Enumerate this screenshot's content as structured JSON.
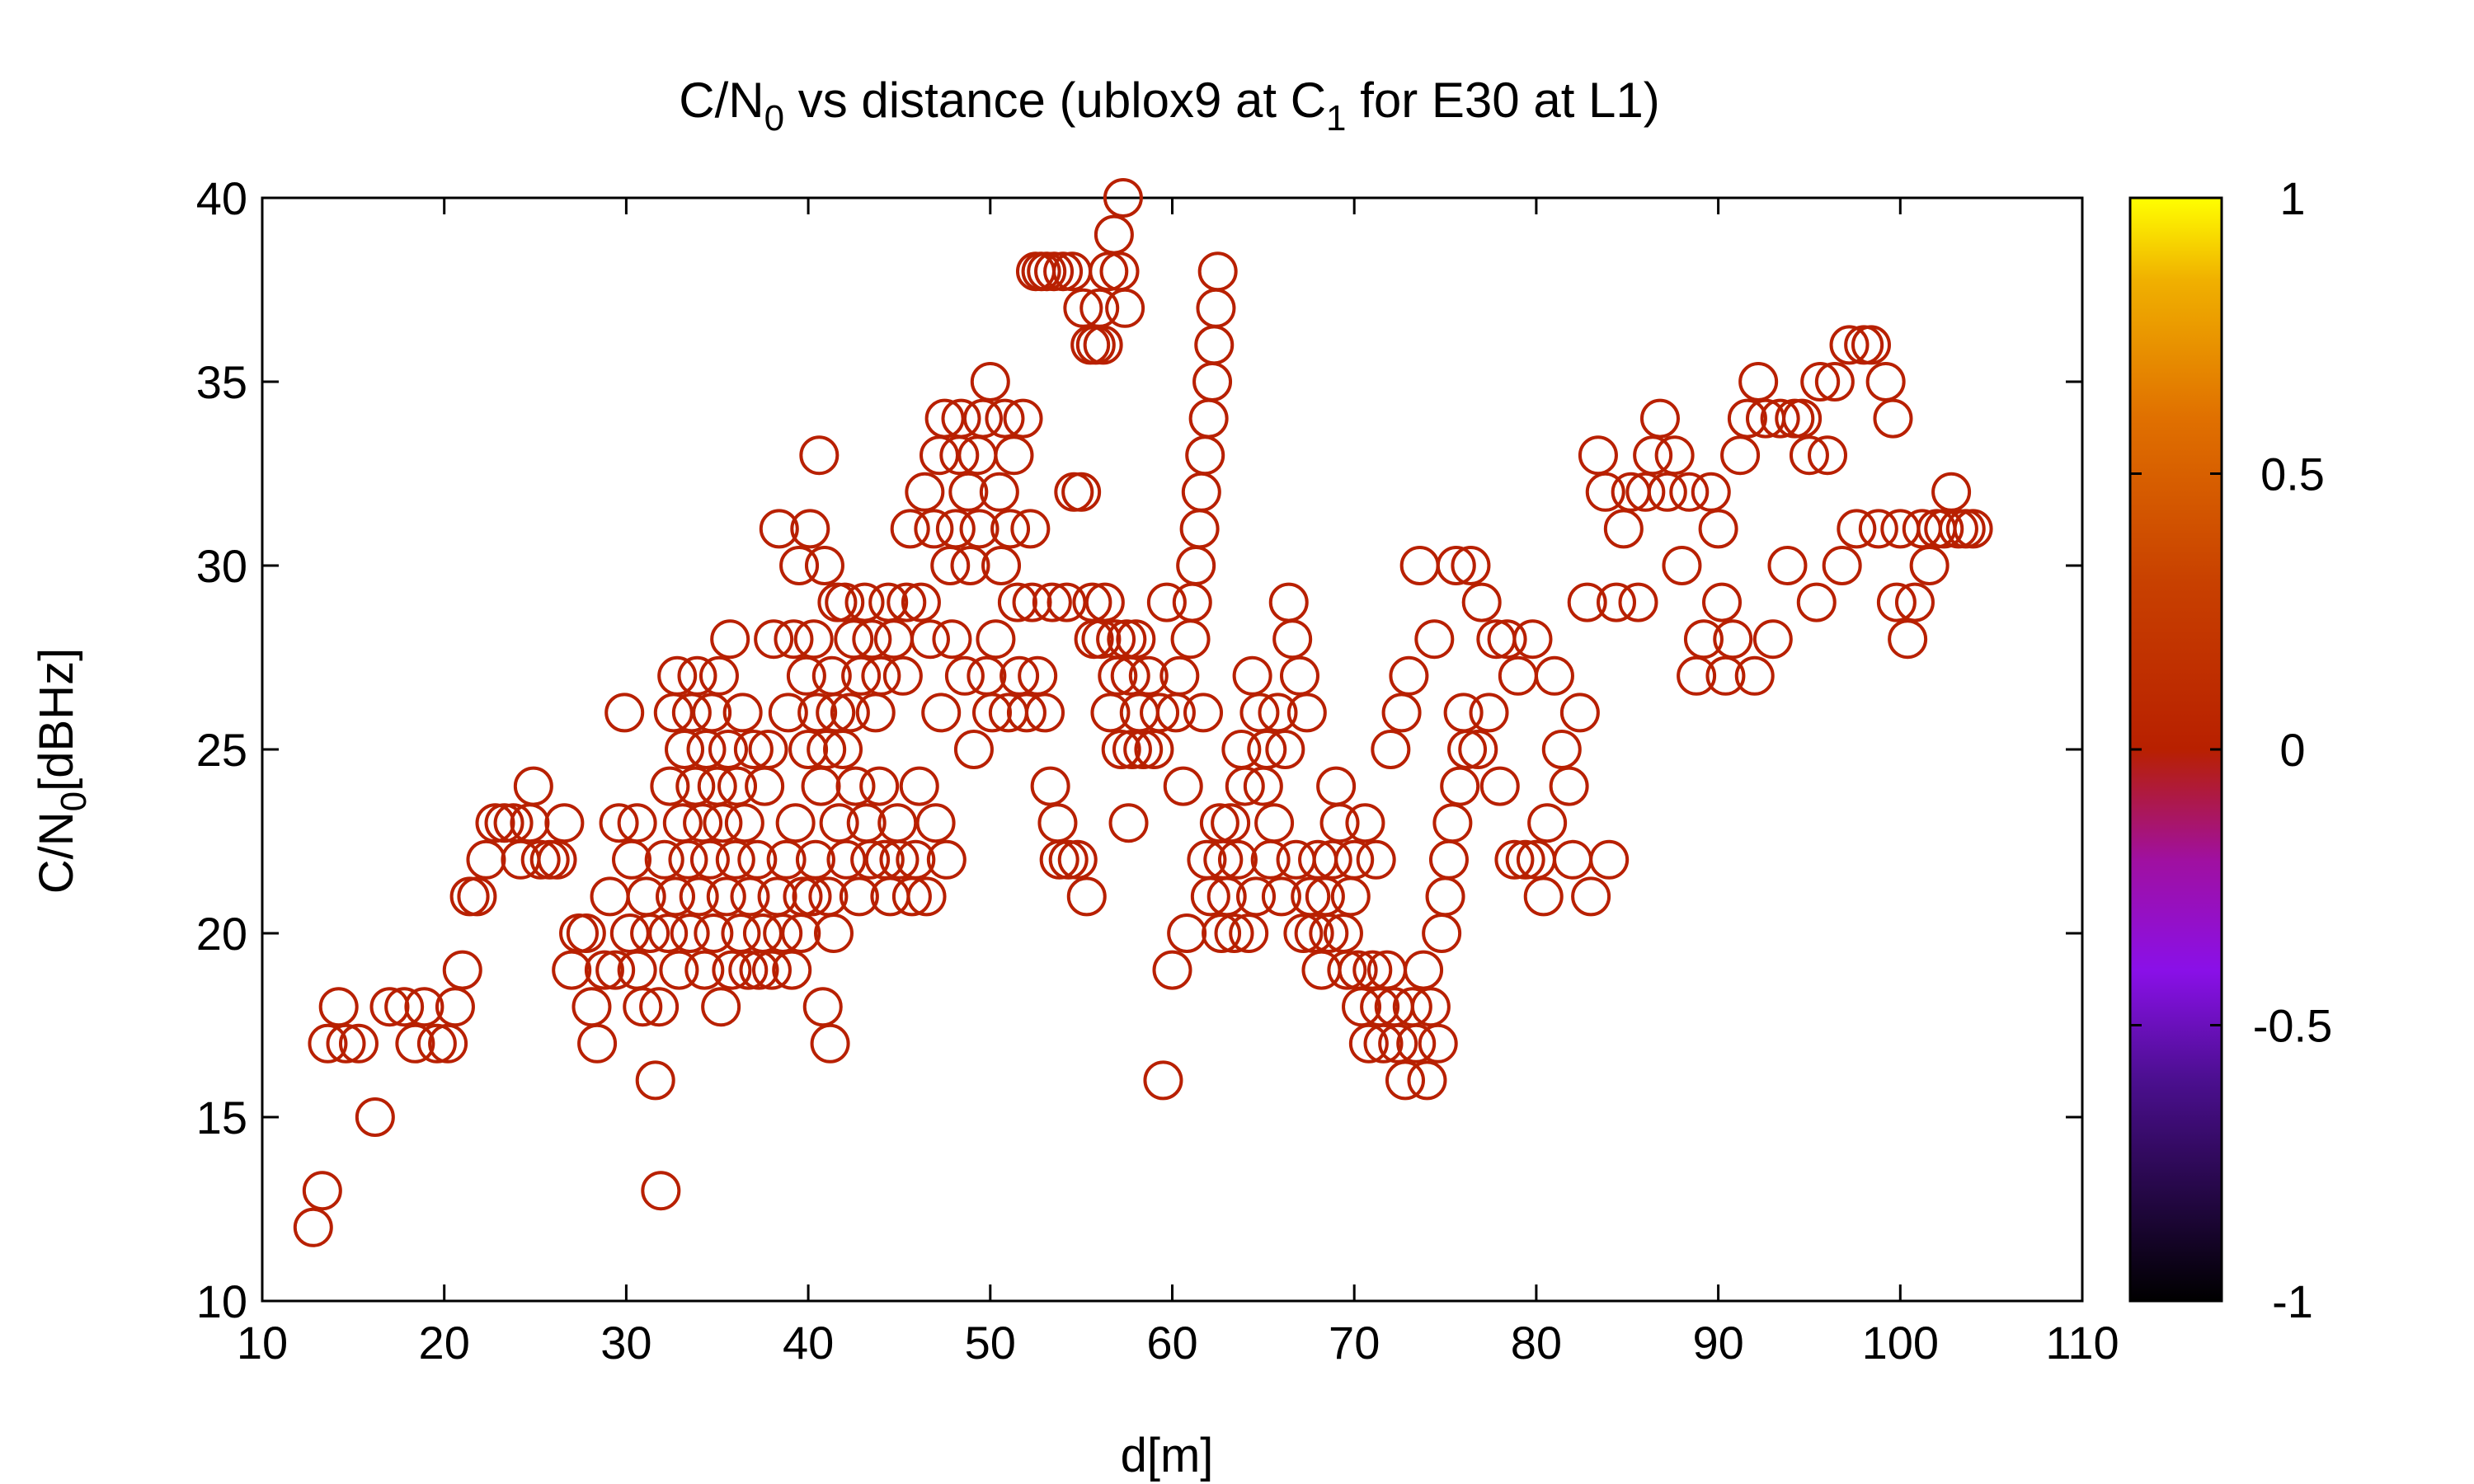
{
  "chart_data": {
    "type": "scatter",
    "title": {
      "part1": "C/N",
      "sub1": "0",
      "part2": " vs distance (ublox9 at C",
      "sub2": "1",
      "part3": " for E30 at L1)"
    },
    "xlabel": "d[m]",
    "ylabel": {
      "main": "C/N",
      "sub": "0",
      "unit": "[dBHz]"
    },
    "xlim": [
      10,
      110
    ],
    "ylim": [
      10,
      40
    ],
    "xticks": [
      10,
      20,
      30,
      40,
      50,
      60,
      70,
      80,
      90,
      100,
      110
    ],
    "yticks": [
      10,
      15,
      20,
      25,
      30,
      35,
      40
    ],
    "grid": false,
    "legend": "none",
    "marker": "open-circle",
    "point_color": "#b82000",
    "colorbar": {
      "range": [
        -1,
        1
      ],
      "ticks": [
        {
          "value": 1,
          "label": "1"
        },
        {
          "value": 0.5,
          "label": "0.5"
        },
        {
          "value": 0,
          "label": "0"
        },
        {
          "value": -0.5,
          "label": "-0.5"
        },
        {
          "value": -1,
          "label": "-1"
        }
      ],
      "stops": [
        {
          "value": -1,
          "color": "#000000"
        },
        {
          "value": -0.6,
          "color": "#4b0f8f"
        },
        {
          "value": -0.4,
          "color": "#8a10e8"
        },
        {
          "value": -0.2,
          "color": "#a010a0"
        },
        {
          "value": 0,
          "color": "#b82000"
        },
        {
          "value": 0.3,
          "color": "#c84000"
        },
        {
          "value": 0.6,
          "color": "#e07000"
        },
        {
          "value": 0.85,
          "color": "#f0b000"
        },
        {
          "value": 1,
          "color": "#ffff00"
        }
      ]
    },
    "points": [
      [
        12.8,
        12
      ],
      [
        13.3,
        13
      ],
      [
        13.6,
        17
      ],
      [
        14.2,
        18
      ],
      [
        14.6,
        17
      ],
      [
        15.3,
        17
      ],
      [
        16.2,
        15
      ],
      [
        17.0,
        18
      ],
      [
        17.8,
        18
      ],
      [
        18.4,
        17
      ],
      [
        18.9,
        18
      ],
      [
        19.6,
        17
      ],
      [
        20.2,
        17
      ],
      [
        20.6,
        18
      ],
      [
        21.0,
        19
      ],
      [
        21.4,
        21
      ],
      [
        21.8,
        21
      ],
      [
        22.3,
        22
      ],
      [
        22.8,
        23
      ],
      [
        23.3,
        23
      ],
      [
        23.8,
        23
      ],
      [
        24.2,
        22
      ],
      [
        24.7,
        23
      ],
      [
        24.9,
        24
      ],
      [
        25.3,
        22
      ],
      [
        25.8,
        22
      ],
      [
        26.2,
        22
      ],
      [
        26.6,
        23
      ],
      [
        27.0,
        19
      ],
      [
        27.4,
        20
      ],
      [
        27.8,
        20
      ],
      [
        28.1,
        18
      ],
      [
        28.4,
        17
      ],
      [
        28.8,
        19
      ],
      [
        29.1,
        21
      ],
      [
        29.4,
        19
      ],
      [
        29.6,
        23
      ],
      [
        29.9,
        26
      ],
      [
        30.2,
        20
      ],
      [
        30.3,
        22
      ],
      [
        30.6,
        19
      ],
      [
        30.6,
        23
      ],
      [
        30.9,
        18
      ],
      [
        31.1,
        21
      ],
      [
        31.3,
        20
      ],
      [
        31.6,
        16
      ],
      [
        31.8,
        18
      ],
      [
        31.9,
        13
      ],
      [
        32.1,
        22
      ],
      [
        32.3,
        20
      ],
      [
        32.4,
        24
      ],
      [
        32.6,
        26
      ],
      [
        32.7,
        21
      ],
      [
        32.8,
        27
      ],
      [
        32.9,
        19
      ],
      [
        33.1,
        23
      ],
      [
        33.2,
        25
      ],
      [
        33.4,
        22
      ],
      [
        33.5,
        20
      ],
      [
        33.6,
        26
      ],
      [
        33.8,
        24
      ],
      [
        33.9,
        27
      ],
      [
        34.0,
        21
      ],
      [
        34.2,
        23
      ],
      [
        34.3,
        19
      ],
      [
        34.4,
        25
      ],
      [
        34.6,
        22
      ],
      [
        34.7,
        26
      ],
      [
        34.8,
        20
      ],
      [
        35.0,
        24
      ],
      [
        35.1,
        27
      ],
      [
        35.2,
        18
      ],
      [
        35.3,
        23
      ],
      [
        35.5,
        21
      ],
      [
        35.6,
        25
      ],
      [
        35.7,
        28
      ],
      [
        35.8,
        19
      ],
      [
        36.0,
        22
      ],
      [
        36.1,
        24
      ],
      [
        36.3,
        20
      ],
      [
        36.4,
        26
      ],
      [
        36.5,
        23
      ],
      [
        36.7,
        19
      ],
      [
        36.8,
        21
      ],
      [
        37.0,
        25
      ],
      [
        37.2,
        22
      ],
      [
        37.3,
        19
      ],
      [
        37.5,
        20
      ],
      [
        37.6,
        24
      ],
      [
        37.8,
        25
      ],
      [
        38.0,
        19
      ],
      [
        38.1,
        28
      ],
      [
        38.3,
        21
      ],
      [
        38.4,
        31
      ],
      [
        38.6,
        20
      ],
      [
        38.8,
        22
      ],
      [
        38.9,
        26
      ],
      [
        39.1,
        19
      ],
      [
        39.2,
        28
      ],
      [
        39.3,
        23
      ],
      [
        39.5,
        30
      ],
      [
        39.6,
        20
      ],
      [
        39.7,
        21
      ],
      [
        39.9,
        27
      ],
      [
        40.0,
        25
      ],
      [
        40.1,
        31
      ],
      [
        40.2,
        21
      ],
      [
        40.3,
        28
      ],
      [
        40.4,
        22
      ],
      [
        40.5,
        26
      ],
      [
        40.6,
        33
      ],
      [
        40.7,
        24
      ],
      [
        40.8,
        18
      ],
      [
        40.9,
        30
      ],
      [
        41.0,
        25
      ],
      [
        41.1,
        21
      ],
      [
        41.2,
        17
      ],
      [
        41.3,
        27
      ],
      [
        41.4,
        20
      ],
      [
        41.5,
        26
      ],
      [
        41.6,
        29
      ],
      [
        41.7,
        23
      ],
      [
        41.9,
        25
      ],
      [
        42.0,
        29
      ],
      [
        42.1,
        22
      ],
      [
        42.3,
        26
      ],
      [
        42.5,
        28
      ],
      [
        42.6,
        24
      ],
      [
        42.8,
        21
      ],
      [
        42.9,
        27
      ],
      [
        43.1,
        29
      ],
      [
        43.2,
        23
      ],
      [
        43.4,
        22
      ],
      [
        43.5,
        28
      ],
      [
        43.7,
        26
      ],
      [
        43.9,
        24
      ],
      [
        44.0,
        27
      ],
      [
        44.2,
        22
      ],
      [
        44.4,
        29
      ],
      [
        44.5,
        21
      ],
      [
        44.7,
        28
      ],
      [
        44.9,
        23
      ],
      [
        45.0,
        22
      ],
      [
        45.2,
        27
      ],
      [
        45.4,
        29
      ],
      [
        45.6,
        31
      ],
      [
        45.7,
        21
      ],
      [
        45.9,
        22
      ],
      [
        46.1,
        24
      ],
      [
        46.2,
        29
      ],
      [
        46.4,
        32
      ],
      [
        46.5,
        21
      ],
      [
        46.7,
        28
      ],
      [
        46.9,
        31
      ],
      [
        47.0,
        23
      ],
      [
        47.2,
        33
      ],
      [
        47.3,
        26
      ],
      [
        47.5,
        34
      ],
      [
        47.6,
        22
      ],
      [
        47.8,
        30
      ],
      [
        47.9,
        28
      ],
      [
        48.1,
        31
      ],
      [
        48.3,
        33
      ],
      [
        48.4,
        34
      ],
      [
        48.6,
        27
      ],
      [
        48.8,
        32
      ],
      [
        48.9,
        30
      ],
      [
        49.1,
        25
      ],
      [
        49.3,
        33
      ],
      [
        49.4,
        31
      ],
      [
        49.6,
        34
      ],
      [
        49.8,
        27
      ],
      [
        50.0,
        35
      ],
      [
        50.1,
        26
      ],
      [
        50.3,
        28
      ],
      [
        50.5,
        32
      ],
      [
        50.6,
        30
      ],
      [
        50.8,
        34
      ],
      [
        51.0,
        26
      ],
      [
        51.1,
        31
      ],
      [
        51.3,
        33
      ],
      [
        51.5,
        29
      ],
      [
        51.6,
        27
      ],
      [
        51.8,
        34
      ],
      [
        52.0,
        26
      ],
      [
        52.2,
        31
      ],
      [
        52.3,
        29
      ],
      [
        52.5,
        38
      ],
      [
        52.6,
        27
      ],
      [
        52.8,
        38
      ],
      [
        53.0,
        26
      ],
      [
        53.1,
        38
      ],
      [
        53.3,
        24
      ],
      [
        53.4,
        29
      ],
      [
        53.5,
        38
      ],
      [
        53.7,
        23
      ],
      [
        53.8,
        22
      ],
      [
        54.0,
        38
      ],
      [
        54.2,
        29
      ],
      [
        54.3,
        22
      ],
      [
        54.5,
        38
      ],
      [
        54.6,
        32
      ],
      [
        54.8,
        22
      ],
      [
        55.0,
        32
      ],
      [
        55.1,
        37
      ],
      [
        55.3,
        21
      ],
      [
        55.5,
        36
      ],
      [
        55.6,
        29
      ],
      [
        55.7,
        28
      ],
      [
        55.8,
        36
      ],
      [
        56.0,
        37
      ],
      [
        56.1,
        28
      ],
      [
        56.2,
        36
      ],
      [
        56.3,
        29
      ],
      [
        56.5,
        38
      ],
      [
        56.6,
        26
      ],
      [
        56.8,
        39
      ],
      [
        56.9,
        28
      ],
      [
        57.0,
        27
      ],
      [
        57.1,
        38
      ],
      [
        57.2,
        25
      ],
      [
        57.3,
        40
      ],
      [
        57.4,
        37
      ],
      [
        57.5,
        28
      ],
      [
        57.6,
        23
      ],
      [
        57.7,
        27
      ],
      [
        57.8,
        25
      ],
      [
        58.0,
        28
      ],
      [
        58.2,
        26
      ],
      [
        58.4,
        25
      ],
      [
        58.7,
        27
      ],
      [
        59.0,
        25
      ],
      [
        59.3,
        26
      ],
      [
        59.5,
        16
      ],
      [
        59.7,
        29
      ],
      [
        60.0,
        19
      ],
      [
        60.2,
        26
      ],
      [
        60.4,
        27
      ],
      [
        60.6,
        24
      ],
      [
        60.8,
        20
      ],
      [
        61.0,
        28
      ],
      [
        61.1,
        29
      ],
      [
        61.3,
        30
      ],
      [
        61.5,
        31
      ],
      [
        61.6,
        32
      ],
      [
        61.7,
        26
      ],
      [
        61.8,
        33
      ],
      [
        61.9,
        22
      ],
      [
        62.0,
        34
      ],
      [
        62.1,
        21
      ],
      [
        62.2,
        35
      ],
      [
        62.3,
        36
      ],
      [
        62.4,
        37
      ],
      [
        62.5,
        38
      ],
      [
        62.6,
        23
      ],
      [
        62.7,
        20
      ],
      [
        62.8,
        22
      ],
      [
        63.0,
        21
      ],
      [
        63.2,
        23
      ],
      [
        63.4,
        20
      ],
      [
        63.6,
        22
      ],
      [
        63.8,
        25
      ],
      [
        64.0,
        24
      ],
      [
        64.2,
        20
      ],
      [
        64.4,
        27
      ],
      [
        64.6,
        21
      ],
      [
        64.8,
        26
      ],
      [
        65.0,
        24
      ],
      [
        65.2,
        25
      ],
      [
        65.4,
        22
      ],
      [
        65.6,
        23
      ],
      [
        65.8,
        26
      ],
      [
        66.0,
        21
      ],
      [
        66.2,
        25
      ],
      [
        66.4,
        29
      ],
      [
        66.6,
        28
      ],
      [
        66.8,
        22
      ],
      [
        67.0,
        27
      ],
      [
        67.2,
        20
      ],
      [
        67.4,
        26
      ],
      [
        67.6,
        21
      ],
      [
        67.8,
        20
      ],
      [
        68.0,
        22
      ],
      [
        68.2,
        19
      ],
      [
        68.4,
        21
      ],
      [
        68.6,
        20
      ],
      [
        68.8,
        22
      ],
      [
        69.0,
        24
      ],
      [
        69.2,
        23
      ],
      [
        69.4,
        20
      ],
      [
        69.6,
        19
      ],
      [
        69.8,
        21
      ],
      [
        70.0,
        22
      ],
      [
        70.2,
        19
      ],
      [
        70.4,
        18
      ],
      [
        70.6,
        23
      ],
      [
        70.8,
        17
      ],
      [
        71.0,
        19
      ],
      [
        71.2,
        22
      ],
      [
        71.4,
        18
      ],
      [
        71.6,
        17
      ],
      [
        71.8,
        19
      ],
      [
        72.0,
        25
      ],
      [
        72.2,
        18
      ],
      [
        72.4,
        17
      ],
      [
        72.6,
        26
      ],
      [
        72.8,
        16
      ],
      [
        73.0,
        27
      ],
      [
        73.2,
        18
      ],
      [
        73.4,
        17
      ],
      [
        73.6,
        30
      ],
      [
        73.8,
        19
      ],
      [
        74.0,
        16
      ],
      [
        74.2,
        18
      ],
      [
        74.4,
        28
      ],
      [
        74.6,
        17
      ],
      [
        74.8,
        20
      ],
      [
        75.0,
        21
      ],
      [
        75.2,
        22
      ],
      [
        75.4,
        23
      ],
      [
        75.6,
        30
      ],
      [
        75.8,
        24
      ],
      [
        76.0,
        26
      ],
      [
        76.2,
        25
      ],
      [
        76.4,
        30
      ],
      [
        76.8,
        25
      ],
      [
        77.0,
        29
      ],
      [
        77.4,
        26
      ],
      [
        77.8,
        28
      ],
      [
        78.0,
        24
      ],
      [
        78.4,
        28
      ],
      [
        78.8,
        22
      ],
      [
        79.0,
        27
      ],
      [
        79.4,
        22
      ],
      [
        79.8,
        28
      ],
      [
        80.0,
        22
      ],
      [
        80.4,
        21
      ],
      [
        80.6,
        23
      ],
      [
        81.0,
        27
      ],
      [
        81.4,
        25
      ],
      [
        81.8,
        24
      ],
      [
        82.0,
        22
      ],
      [
        82.4,
        26
      ],
      [
        82.8,
        29
      ],
      [
        83.0,
        21
      ],
      [
        83.4,
        33
      ],
      [
        83.8,
        32
      ],
      [
        84.0,
        22
      ],
      [
        84.4,
        29
      ],
      [
        84.8,
        31
      ],
      [
        85.2,
        32
      ],
      [
        85.6,
        29
      ],
      [
        86.0,
        32
      ],
      [
        86.4,
        33
      ],
      [
        86.8,
        34
      ],
      [
        87.2,
        32
      ],
      [
        87.6,
        33
      ],
      [
        88.0,
        30
      ],
      [
        88.4,
        32
      ],
      [
        88.8,
        27
      ],
      [
        89.2,
        28
      ],
      [
        89.6,
        32
      ],
      [
        90.0,
        31
      ],
      [
        90.2,
        29
      ],
      [
        90.4,
        27
      ],
      [
        90.8,
        28
      ],
      [
        91.2,
        33
      ],
      [
        91.6,
        34
      ],
      [
        92.0,
        27
      ],
      [
        92.2,
        35
      ],
      [
        92.6,
        34
      ],
      [
        93.0,
        28
      ],
      [
        93.4,
        34
      ],
      [
        93.8,
        30
      ],
      [
        94.2,
        34
      ],
      [
        94.6,
        34
      ],
      [
        95.0,
        33
      ],
      [
        95.4,
        29
      ],
      [
        95.6,
        35
      ],
      [
        96.0,
        33
      ],
      [
        96.4,
        35
      ],
      [
        96.8,
        30
      ],
      [
        97.2,
        36
      ],
      [
        97.6,
        31
      ],
      [
        98.0,
        36
      ],
      [
        98.4,
        36
      ],
      [
        98.8,
        31
      ],
      [
        99.2,
        35
      ],
      [
        99.6,
        34
      ],
      [
        99.8,
        29
      ],
      [
        100.0,
        31
      ],
      [
        100.4,
        28
      ],
      [
        100.8,
        29
      ],
      [
        101.2,
        31
      ],
      [
        101.6,
        30
      ],
      [
        102.0,
        31
      ],
      [
        102.4,
        31
      ],
      [
        102.8,
        32
      ],
      [
        103.2,
        31
      ],
      [
        103.6,
        31
      ],
      [
        104.0,
        31
      ]
    ]
  }
}
